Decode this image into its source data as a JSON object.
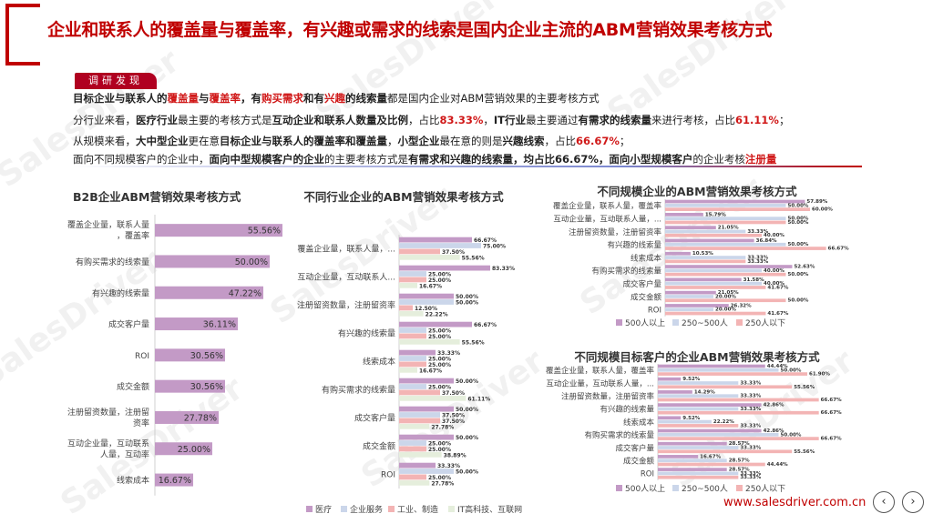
{
  "title": "企业和联系人的覆盖量与覆盖率，有兴趣或需求的线索是国内企业主流的ABM营销效果考核方式",
  "tag": "调研发现",
  "findings": {
    "line1": {
      "p1": "目标企业与联系人的",
      "p2": "覆盖量",
      "p3": "与",
      "p4": "覆盖率",
      "p5": "，有",
      "p6": "购买需求",
      "p7": "和有",
      "p8": "兴趣",
      "p9": "的线索量",
      "p10": "都是国内企业对ABM营销效果的主要考核方式"
    },
    "line2": {
      "p1": "分行业来看，",
      "p2": "医疗行业",
      "p3": "最主要的考核方式是",
      "p4": "互动企业和联系人数量及比例",
      "p5": "，占比",
      "p6": "83.33%",
      "p7": "，",
      "p8": "IT行业",
      "p9": "最主要通过",
      "p10": "有需求的线索量",
      "p11": "来进行考核，占比",
      "p12": "61.11%",
      "p13": "；"
    },
    "line3": {
      "p1": "从规模来看，",
      "p2": "大中型企业",
      "p3": "更在意",
      "p4": "目标企业与联系人的覆盖率和覆盖量",
      "p5": "，",
      "p6": "小型企业",
      "p7": "最在意的则是",
      "p8": "兴趣线索",
      "p9": "，占比",
      "p10": "66.67%",
      "p11": "；"
    },
    "line4": {
      "p1": "面向不同规模客户的企业中，",
      "p2": "面向中型规模客户的企业",
      "p3": "的主要考核方式是",
      "p4": "有需求和兴趣的线索量，均占比66.67%，面向小型规模客户",
      "p5": "的企业考核",
      "p6": "注册量"
    }
  },
  "watermark": "SalesDriver",
  "website": "www.salesdriver.com.cn",
  "nav": {
    "prev": "‹",
    "next": "›"
  },
  "colors": {
    "brand": "#c00000",
    "series": [
      "#c39ac6",
      "#cbd6ea",
      "#f3b4b4",
      "#e5eedc"
    ]
  },
  "chart_data": [
    {
      "type": "bar",
      "orientation": "horizontal",
      "title": "B2B企业ABM营销效果考核方式",
      "categories": [
        "覆盖企业量，联系人量，覆盖率",
        "有购买需求的线索量",
        "有兴趣的线索量",
        "成交客户量",
        "ROI",
        "成交金额",
        "注册留资数量，注册留资率",
        "互动企业量，互动联系人量，互动率",
        "线索成本"
      ],
      "values": [
        55.56,
        50.0,
        47.22,
        36.11,
        30.56,
        30.56,
        27.78,
        25.0,
        16.67
      ],
      "labels": [
        "55.56%",
        "50.00%",
        "47.22%",
        "36.11%",
        "30.56%",
        "30.56%",
        "27.78%",
        "25.00%",
        "16.67%"
      ],
      "xlim": [
        0,
        60
      ]
    },
    {
      "type": "bar",
      "orientation": "horizontal",
      "title": "不同行业企业的ABM营销效果考核方式",
      "categories": [
        "覆盖企业量，联系人量，...",
        "互动企业量，互动联系人...",
        "注册留资数量，注册留资率",
        "有兴趣的线索量",
        "线索成本",
        "有购买需求的线索量",
        "成交客户量",
        "成交金额",
        "ROI"
      ],
      "series": [
        {
          "name": "医疗",
          "values": [
            66.67,
            83.33,
            50.0,
            66.67,
            33.33,
            50.0,
            50.0,
            50.0,
            33.33
          ],
          "labels": [
            "66.67%",
            "83.33%",
            "50.00%",
            "66.67%",
            "33.33%",
            "50.00%",
            "50.00%",
            "50.00%",
            "33.33%"
          ]
        },
        {
          "name": "企业服务",
          "values": [
            75.0,
            25.0,
            50.0,
            25.0,
            25.0,
            25.0,
            37.5,
            25.0,
            50.0
          ],
          "labels": [
            "75.00%",
            "25.00%",
            "50.00%",
            "25.00%",
            "25.00%",
            "25.00%",
            "37.50%",
            "25.00%",
            "50.00%"
          ]
        },
        {
          "name": "工业、制造",
          "values": [
            37.5,
            25.0,
            12.5,
            25.0,
            25.0,
            37.5,
            37.5,
            25.0,
            25.0
          ],
          "labels": [
            "37.50%",
            "25.00%",
            "12.50%",
            "25.00%",
            "25.00%",
            "37.50%",
            "37.50%",
            "25.00%",
            "25.00%"
          ]
        },
        {
          "name": "IT高科技、互联网",
          "values": [
            55.56,
            16.67,
            22.22,
            55.56,
            16.67,
            61.11,
            27.78,
            38.89,
            27.78
          ],
          "labels": [
            "55.56%",
            "16.67%",
            "22.22%",
            "55.56%",
            "16.67%",
            "61.11%",
            "27.78%",
            "38.89%",
            "27.78%"
          ]
        }
      ],
      "xlim": [
        0,
        100
      ]
    },
    {
      "type": "bar",
      "orientation": "horizontal",
      "title": "不同规模企业的ABM营销效果考核方式",
      "categories": [
        "覆盖企业量，联系人量，覆盖率",
        "互动企业量，互动联系人量，...",
        "注册留资数量，注册留资率",
        "有兴趣的线索量",
        "线索成本",
        "有购买需求的线索量",
        "成交客户量",
        "成交金额",
        "ROI"
      ],
      "series": [
        {
          "name": "500人以上",
          "values": [
            57.89,
            15.79,
            21.05,
            36.84,
            10.53,
            52.63,
            31.58,
            21.05,
            26.32
          ],
          "labels": [
            "57.89%",
            "15.79%",
            "21.05%",
            "36.84%",
            "10.53%",
            "52.63%",
            "31.58%",
            "21.05%",
            "26.32%"
          ]
        },
        {
          "name": "250~500人",
          "values": [
            50.0,
            50.0,
            33.33,
            50.0,
            33.33,
            40.0,
            40.0,
            20.0,
            20.0
          ],
          "labels": [
            "50.00%",
            "50.00%",
            "33.33%",
            "50.00%",
            "33.33%",
            "40.00%",
            "40.00%",
            "20.00%",
            "20.00%"
          ]
        },
        {
          "name": "250人以下",
          "values": [
            60.0,
            50.0,
            40.0,
            66.67,
            33.33,
            50.0,
            41.67,
            50.0,
            41.67
          ],
          "labels": [
            "60.00%",
            "50.00%",
            "40.00%",
            "66.67%",
            "33.33%",
            "50.00%",
            "41.67%",
            "50.00%",
            "41.67%"
          ]
        }
      ],
      "xlim": [
        0,
        100
      ]
    },
    {
      "type": "bar",
      "orientation": "horizontal",
      "title": "不同规模目标客户的企业ABM营销效果考核方式",
      "categories": [
        "覆盖企业量，联系人量，覆盖率",
        "互动企业量，互动联系人量，...",
        "注册留资数量，注册留资率",
        "有兴趣的线索量",
        "线索成本",
        "有购买需求的线索量",
        "成交客户量",
        "成交金额",
        "ROI"
      ],
      "series": [
        {
          "name": "500人以上",
          "values": [
            44.44,
            9.52,
            14.29,
            42.86,
            9.52,
            42.86,
            28.57,
            16.67,
            28.57
          ],
          "labels": [
            "44.44%",
            "9.52%",
            "14.29%",
            "42.86%",
            "9.52%",
            "42.86%",
            "28.57%",
            "16.67%",
            "28.57%"
          ]
        },
        {
          "name": "250~500人",
          "values": [
            50.0,
            33.33,
            33.33,
            33.33,
            22.22,
            50.0,
            33.33,
            28.57,
            33.33
          ],
          "labels": [
            "50.00%",
            "33.33%",
            "33.33%",
            "33.33%",
            "22.22%",
            "50.00%",
            "33.33%",
            "28.57%",
            "33.33%"
          ]
        },
        {
          "name": "250人以下",
          "values": [
            61.9,
            55.56,
            66.67,
            66.67,
            33.33,
            66.67,
            55.56,
            44.44,
            33.33
          ],
          "labels": [
            "61.90%",
            "55.56%",
            "66.67%",
            "66.67%",
            "33.33%",
            "66.67%",
            "55.56%",
            "44.44%",
            "33.33%"
          ]
        }
      ],
      "xlim": [
        0,
        100
      ]
    }
  ]
}
